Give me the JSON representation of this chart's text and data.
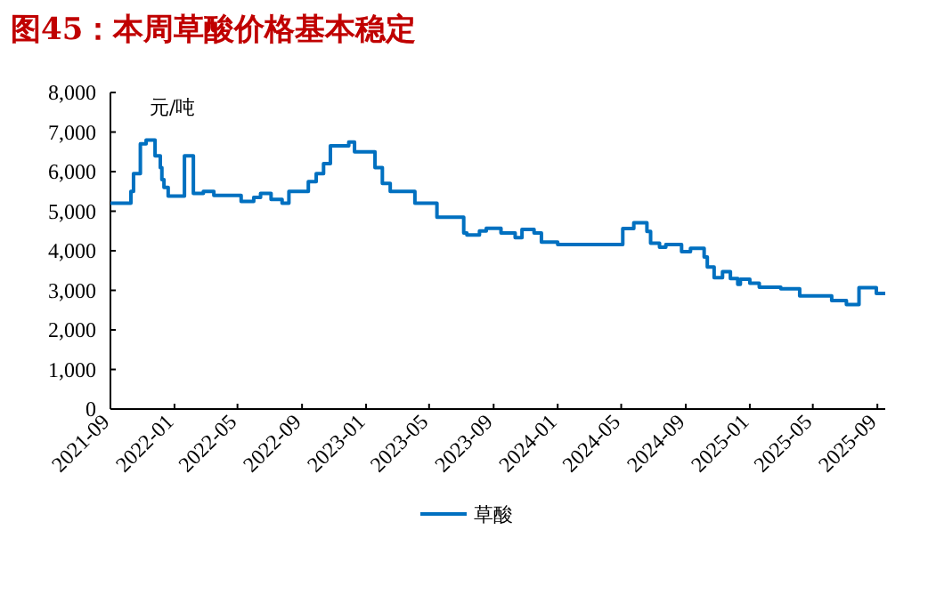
{
  "chart_data": {
    "type": "step",
    "title": "图45：本周草酸价格基本稳定",
    "ylabel": "元/吨",
    "xlim": [
      "2021-09-01",
      "2025-09-16"
    ],
    "xticks": [
      "2021-09",
      "2022-01",
      "2022-05",
      "2022-09",
      "2023-01",
      "2023-05",
      "2023-09",
      "2024-01",
      "2024-05",
      "2024-09",
      "2025-01",
      "2025-05",
      "2025-09"
    ],
    "ylim": [
      0,
      8000
    ],
    "yticks": [
      {
        "value": 0,
        "label": "0"
      },
      {
        "value": 1000,
        "label": "1,000"
      },
      {
        "value": 2000,
        "label": "2,000"
      },
      {
        "value": 3000,
        "label": "3,000"
      },
      {
        "value": 4000,
        "label": "4,000"
      },
      {
        "value": 5000,
        "label": "5,000"
      },
      {
        "value": 6000,
        "label": "6,000"
      },
      {
        "value": 7000,
        "label": "7,000"
      },
      {
        "value": 8000,
        "label": "8,000"
      }
    ],
    "grid": false,
    "legend": "bottom",
    "series": [
      {
        "name": "草酸",
        "color": "#0070c0",
        "x": [
          "2021-09-01",
          "2021-10-10",
          "2021-10-15",
          "2021-10-28",
          "2021-11-08",
          "2021-11-25",
          "2021-12-05",
          "2021-12-08",
          "2021-12-12",
          "2021-12-20",
          "2022-01-20",
          "2022-02-06",
          "2022-02-25",
          "2022-03-17",
          "2022-05-08",
          "2022-06-01",
          "2022-06-14",
          "2022-07-04",
          "2022-07-25",
          "2022-08-07",
          "2022-09-13",
          "2022-09-28",
          "2022-10-12",
          "2022-10-25",
          "2022-11-29",
          "2022-12-10",
          "2023-01-18",
          "2023-02-01",
          "2023-02-16",
          "2023-04-04",
          "2023-05-16",
          "2023-07-06",
          "2023-07-12",
          "2023-08-05",
          "2023-08-18",
          "2023-09-15",
          "2023-10-12",
          "2023-10-25",
          "2023-11-17",
          "2023-12-01",
          "2024-01-01",
          "2024-05-04",
          "2024-05-25",
          "2024-06-19",
          "2024-06-26",
          "2024-07-13",
          "2024-07-25",
          "2024-08-24",
          "2024-09-10",
          "2024-10-06",
          "2024-10-12",
          "2024-10-25",
          "2024-11-10",
          "2024-11-25",
          "2024-12-09",
          "2024-12-14",
          "2025-01-01",
          "2025-01-19",
          "2025-03-01",
          "2025-04-06",
          "2025-06-06",
          "2025-07-04",
          "2025-07-28",
          "2025-08-30",
          "2025-09-16"
        ],
        "values": [
          5200,
          5500,
          5950,
          6700,
          6800,
          6400,
          6100,
          5800,
          5600,
          5380,
          6400,
          5450,
          5500,
          5400,
          5250,
          5350,
          5450,
          5300,
          5200,
          5500,
          5750,
          5950,
          6200,
          6650,
          6750,
          6500,
          6100,
          5700,
          5500,
          5200,
          4850,
          4450,
          4400,
          4500,
          4570,
          4450,
          4330,
          4540,
          4450,
          4220,
          4160,
          4560,
          4710,
          4490,
          4190,
          4090,
          4160,
          3980,
          4060,
          3840,
          3590,
          3320,
          3470,
          3300,
          3150,
          3280,
          3180,
          3080,
          3040,
          2860,
          2740,
          2640,
          3070,
          2920,
          2920
        ]
      }
    ]
  }
}
